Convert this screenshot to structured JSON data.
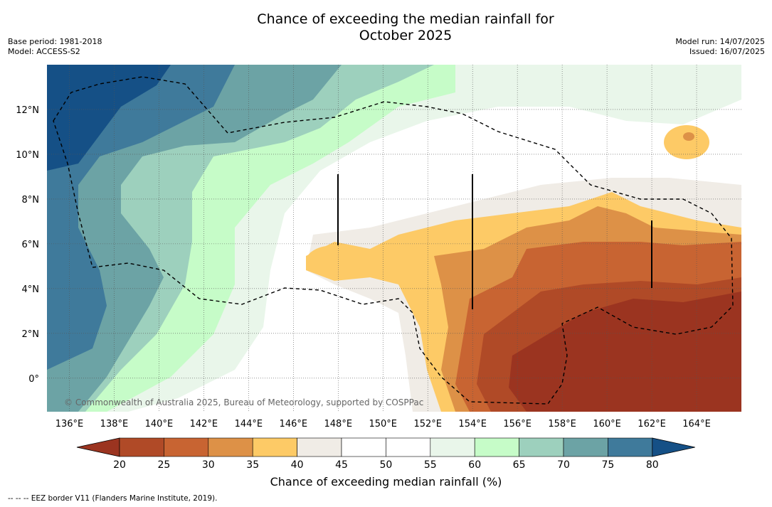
{
  "title_line1": "Chance of exceeding the median rainfall for",
  "title_line2": "October 2025",
  "base_period": "Base period: 1981-2018",
  "model": "Model: ACCESS-S2",
  "model_run": "Model run: 14/07/2025",
  "issued": "Issued: 16/07/2025",
  "copyright": "© Commonwealth of Australia 2025, Bureau of Meteorology, supported by COSPPac",
  "colorbar_title": "Chance of exceeding median rainfall (%)",
  "footer_note": "--  --  -- EEZ border V11 (Flanders Marine Institute, 2019).",
  "map": {
    "lon_range": [
      135,
      166
    ],
    "lat_range": [
      -1.5,
      14
    ],
    "lon_ticks": [
      "136°E",
      "138°E",
      "140°E",
      "142°E",
      "144°E",
      "146°E",
      "148°E",
      "150°E",
      "152°E",
      "154°E",
      "156°E",
      "158°E",
      "160°E",
      "162°E",
      "164°E"
    ],
    "lat_ticks": [
      "12°N",
      "10°N",
      "8°N",
      "6°N",
      "4°N",
      "2°N",
      "0°"
    ]
  },
  "legend": {
    "ticks": [
      "20",
      "25",
      "30",
      "35",
      "40",
      "45",
      "50",
      "55",
      "60",
      "65",
      "70",
      "75",
      "80"
    ],
    "colors": [
      "#9b3420",
      "#b04a27",
      "#c86432",
      "#dd9147",
      "#fdca66",
      "#f0ece6",
      "#ffffff",
      "#ffffff",
      "#e9f6ea",
      "#c6fcc8",
      "#9dd0bd",
      "#6ca3a5",
      "#3f7a9b",
      "#155086"
    ],
    "low_end_color": "#9b3420",
    "high_end_color": "#155086"
  }
}
